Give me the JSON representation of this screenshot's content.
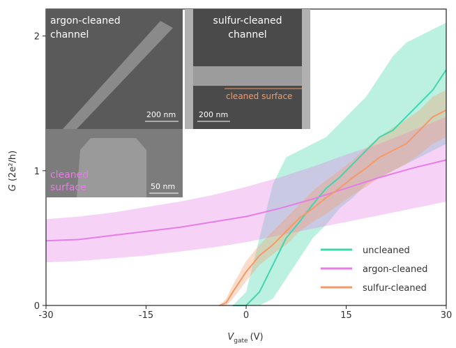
{
  "chart_data": {
    "type": "line",
    "ylabel_var": "G",
    "ylabel_unit": "(2e²/h)",
    "xlabel_var": "V",
    "xlabel_sub": "gate",
    "xlabel_unit": "(V)",
    "xlim": [
      -30,
      30
    ],
    "xticks": [
      -30,
      -15,
      0,
      15,
      30
    ],
    "ylim": [
      0,
      2.2
    ],
    "yticks": [
      0,
      1,
      2
    ],
    "legend": "lower right",
    "series": [
      {
        "name": "uncleaned",
        "color": "#3fd6ad",
        "x": [
          -2,
          0,
          2,
          4,
          6,
          8,
          10,
          12,
          14,
          16,
          18,
          20,
          22,
          24,
          26,
          28,
          30
        ],
        "values": [
          0,
          0,
          0.1,
          0.3,
          0.5,
          0.62,
          0.75,
          0.87,
          0.95,
          1.05,
          1.15,
          1.25,
          1.3,
          1.4,
          1.5,
          1.6,
          1.75
        ],
        "lower": [
          0,
          0,
          0,
          0.05,
          0.2,
          0.35,
          0.5,
          0.6,
          0.72,
          0.8,
          0.9,
          0.95,
          1.0,
          1.05,
          1.1,
          1.15,
          1.2
        ],
        "upper": [
          0,
          0.1,
          0.5,
          0.9,
          1.1,
          1.15,
          1.2,
          1.25,
          1.35,
          1.45,
          1.55,
          1.7,
          1.85,
          1.95,
          2.0,
          2.05,
          2.1
        ]
      },
      {
        "name": "argon-cleaned",
        "color": "#e57de5",
        "x": [
          -30,
          -25,
          -20,
          -15,
          -10,
          -5,
          0,
          5,
          10,
          15,
          20,
          25,
          30
        ],
        "values": [
          0.48,
          0.49,
          0.52,
          0.55,
          0.58,
          0.62,
          0.66,
          0.72,
          0.79,
          0.87,
          0.95,
          1.02,
          1.08
        ],
        "lower": [
          0.32,
          0.33,
          0.35,
          0.37,
          0.4,
          0.43,
          0.47,
          0.52,
          0.57,
          0.62,
          0.67,
          0.72,
          0.77
        ],
        "upper": [
          0.64,
          0.66,
          0.69,
          0.73,
          0.77,
          0.82,
          0.88,
          0.95,
          1.03,
          1.12,
          1.2,
          1.3,
          1.4
        ]
      },
      {
        "name": "sulfur-cleaned",
        "color": "#f39a68",
        "x": [
          -4,
          -3,
          -2,
          0,
          2,
          4,
          6,
          8,
          10,
          12,
          14,
          16,
          18,
          20,
          22,
          24,
          26,
          28,
          30
        ],
        "values": [
          0,
          0.02,
          0.1,
          0.25,
          0.37,
          0.45,
          0.55,
          0.65,
          0.72,
          0.8,
          0.87,
          0.95,
          1.02,
          1.1,
          1.15,
          1.2,
          1.3,
          1.4,
          1.45
        ],
        "lower": [
          0,
          0,
          0.05,
          0.18,
          0.3,
          0.38,
          0.45,
          0.55,
          0.62,
          0.68,
          0.75,
          0.82,
          0.88,
          0.95,
          1.0,
          1.05,
          1.12,
          1.2,
          1.25
        ],
        "upper": [
          0,
          0.05,
          0.15,
          0.33,
          0.45,
          0.55,
          0.65,
          0.75,
          0.85,
          0.93,
          1.0,
          1.08,
          1.17,
          1.25,
          1.32,
          1.38,
          1.45,
          1.55,
          1.6
        ]
      }
    ]
  },
  "insets": {
    "argon_title_1": "argon-cleaned",
    "argon_title_2": "channel",
    "argon_scale": "200 nm",
    "surface_1": "cleaned",
    "surface_2": "surface",
    "surface_scale": "50 nm",
    "sulfur_title_1": "sulfur-cleaned",
    "sulfur_title_2": "channel",
    "sulfur_surface": "cleaned surface",
    "sulfur_scale": "200 nm"
  }
}
